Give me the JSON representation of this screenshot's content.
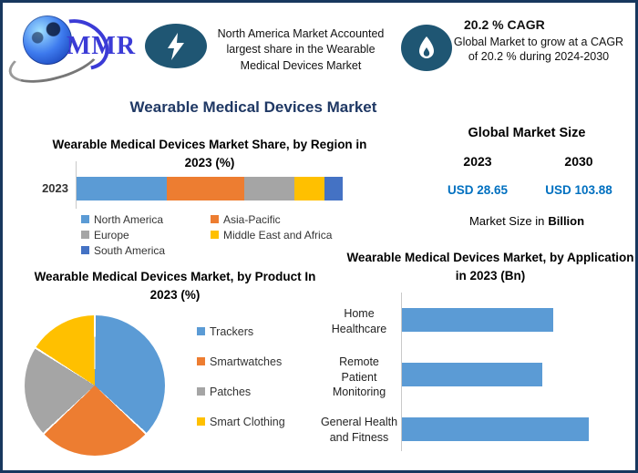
{
  "colors": {
    "navy": "#1F3864",
    "border": "#17375E",
    "badge_circle": "#1F5673",
    "value_blue": "#0070C0",
    "bar_blue": "#5B9BD5"
  },
  "header": {
    "logo": {
      "text": "MMR",
      "icon": "globe-icon"
    },
    "callout_left": {
      "icon": "lightning-icon",
      "text": "North America Market Accounted largest share in the Wearable Medical Devices Market"
    },
    "callout_right": {
      "icon": "flame-icon",
      "title": "20.2 % CAGR",
      "body": "Global Market to grow at a CAGR of 20.2 % during 2024-2030"
    }
  },
  "main_title": "Wearable Medical Devices Market",
  "market_size_panel": {
    "title": "Global Market Size",
    "years": [
      "2023",
      "2030"
    ],
    "values": [
      "USD 28.65",
      "USD 103.88"
    ],
    "note_prefix": "Market Size in",
    "note_bold": "Billion"
  },
  "chart_data": [
    {
      "id": "region_share",
      "type": "bar",
      "subtype": "horizontal-stacked",
      "title": "Wearable Medical Devices Market Share, by Region in 2023 (%)",
      "categories": [
        "2023"
      ],
      "series": [
        {
          "name": "North America",
          "values": [
            34
          ],
          "color": "#5B9BD5"
        },
        {
          "name": "Asia-Pacific",
          "values": [
            29
          ],
          "color": "#ED7D31"
        },
        {
          "name": "Europe",
          "values": [
            19
          ],
          "color": "#A5A5A5"
        },
        {
          "name": "Middle East and Africa",
          "values": [
            11
          ],
          "color": "#FFC000"
        },
        {
          "name": "South America",
          "values": [
            7
          ],
          "color": "#4472C4"
        }
      ],
      "unit": "%",
      "xlim": [
        0,
        100
      ],
      "grid": false,
      "legend_position": "bottom",
      "note": "segment percentages estimated from segment widths; no data labels shown"
    },
    {
      "id": "product_share",
      "type": "pie",
      "title": "Wearable Medical Devices Market, by Product In 2023 (%)",
      "labels": [
        "Trackers",
        "Smartwatches",
        "Patches",
        "Smart Clothing"
      ],
      "values": [
        37,
        26,
        21,
        16
      ],
      "colors": [
        "#5B9BD5",
        "#ED7D31",
        "#A5A5A5",
        "#FFC000"
      ],
      "unit": "%",
      "start_angle_deg": 0,
      "direction": "clockwise",
      "legend_position": "right",
      "note": "slice percentages estimated from slice angles; no data labels shown"
    },
    {
      "id": "application_size",
      "type": "bar",
      "subtype": "horizontal",
      "title": "Wearable Medical Devices Market, by Application in 2023 (Bn)",
      "categories": [
        "Home Healthcare",
        "Remote Patient Monitoring",
        "General Health and Fitness"
      ],
      "values_relative_pct_of_max": [
        81,
        75,
        100
      ],
      "color": "#5B9BD5",
      "unit": "Bn",
      "grid": false,
      "note": "no numeric axis labels shown; values are relative bar lengths (% of longest bar)"
    }
  ]
}
